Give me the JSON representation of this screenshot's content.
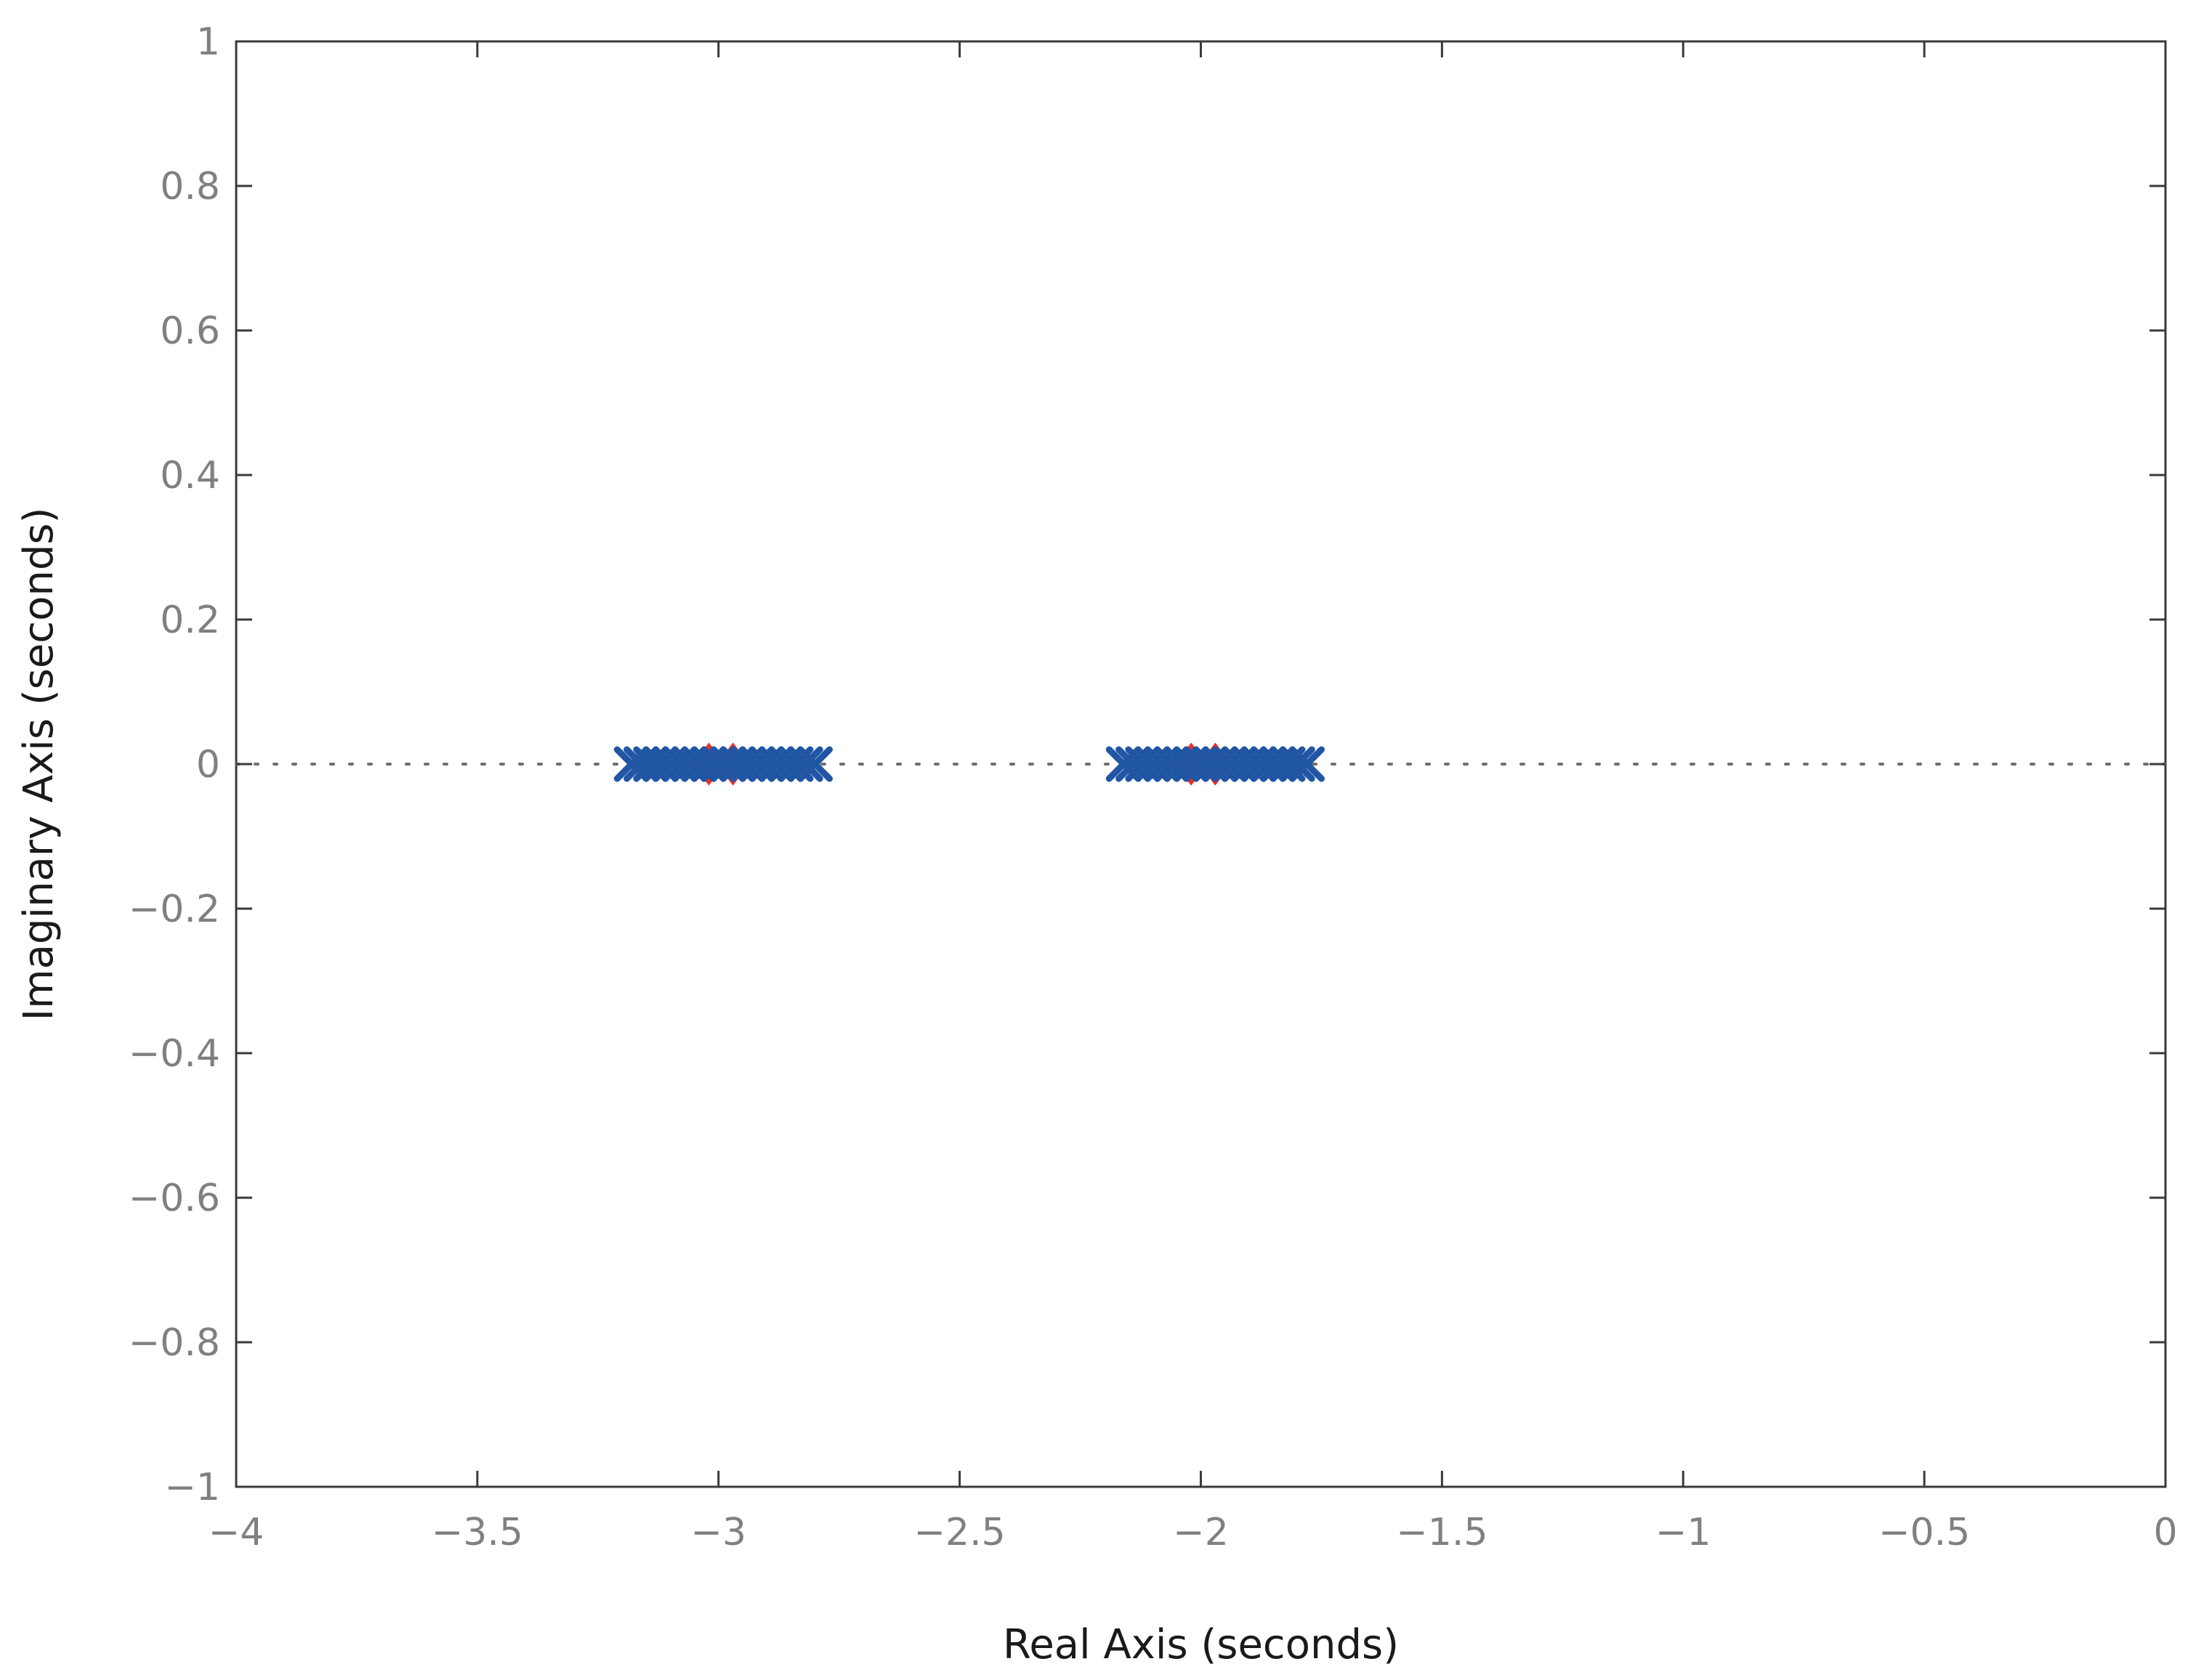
{
  "chart_data": {
    "type": "scatter",
    "title": "",
    "xlabel": "Real Axis (seconds)",
    "ylabel": "Imaginary Axis (seconds)",
    "xlim": [
      -4,
      0
    ],
    "ylim": [
      -1,
      1
    ],
    "xticks": [
      -4,
      -3.5,
      -3,
      -2.5,
      -2,
      -1.5,
      -1,
      -0.5,
      0
    ],
    "yticks": [
      -1,
      -0.8,
      -0.6,
      -0.4,
      -0.2,
      0,
      0.2,
      0.4,
      0.6,
      0.8,
      1
    ],
    "xtick_labels": [
      "−4",
      "−3.5",
      "−3",
      "−2.5",
      "−2",
      "−1.5",
      "−1",
      "−0.5",
      "0"
    ],
    "ytick_labels": [
      "−1",
      "−0.8",
      "−0.6",
      "−0.4",
      "−0.2",
      "0",
      "0.2",
      "0.4",
      "0.6",
      "0.8",
      "1"
    ],
    "grid": false,
    "zero_line": "dotted",
    "series": [
      {
        "marker": "diamond",
        "color": "#e8312a",
        "x": [
          -3.02,
          -2.97,
          -2.02,
          -1.97
        ],
        "y": [
          0,
          0,
          0,
          0
        ]
      },
      {
        "marker": "x",
        "color": "#2156a5",
        "x": [
          -3.18,
          -3.16,
          -3.14,
          -3.12,
          -3.1,
          -3.08,
          -3.06,
          -3.04,
          -3.02,
          -3.0,
          -2.98,
          -2.96,
          -2.94,
          -2.92,
          -2.9,
          -2.88,
          -2.86,
          -2.84,
          -2.82,
          -2.8,
          -2.16,
          -2.14,
          -2.12,
          -2.1,
          -2.08,
          -2.06,
          -2.04,
          -2.02,
          -2.0,
          -1.98,
          -1.96,
          -1.94,
          -1.92,
          -1.9,
          -1.88,
          -1.86,
          -1.84,
          -1.82,
          -1.8,
          -1.78
        ],
        "y": [
          0,
          0,
          0,
          0,
          0,
          0,
          0,
          0,
          0,
          0,
          0,
          0,
          0,
          0,
          0,
          0,
          0,
          0,
          0,
          0,
          0,
          0,
          0,
          0,
          0,
          0,
          0,
          0,
          0,
          0,
          0,
          0,
          0,
          0,
          0,
          0,
          0,
          0,
          0,
          0
        ]
      }
    ],
    "colors": {
      "axis": "#3a3a3a",
      "tick_label": "#808080",
      "zero_line": "#6e6e6e"
    }
  }
}
